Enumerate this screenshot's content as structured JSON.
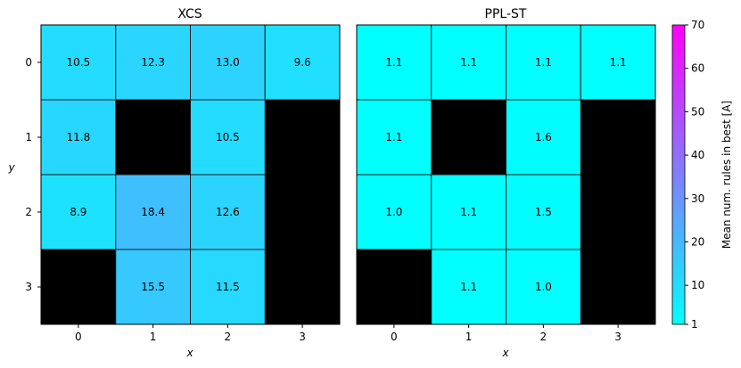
{
  "chart_data": [
    {
      "type": "heatmap",
      "title": "XCS",
      "xlabel": "x",
      "ylabel": "y",
      "x_categories": [
        "0",
        "1",
        "2",
        "3"
      ],
      "y_categories": [
        "0",
        "1",
        "2",
        "3"
      ],
      "values": [
        [
          10.5,
          12.3,
          13.0,
          9.6
        ],
        [
          11.8,
          null,
          10.5,
          null
        ],
        [
          8.9,
          18.4,
          12.6,
          null
        ],
        [
          null,
          15.5,
          11.5,
          null
        ]
      ],
      "labels": [
        [
          "10.5",
          "12.3",
          "13.0",
          "9.6"
        ],
        [
          "11.8",
          "",
          "10.5",
          ""
        ],
        [
          "8.9",
          "18.4",
          "12.6",
          ""
        ],
        [
          "",
          "15.5",
          "11.5",
          ""
        ]
      ],
      "null_color": "#000000"
    },
    {
      "type": "heatmap",
      "title": "PPL-ST",
      "xlabel": "x",
      "ylabel": "",
      "x_categories": [
        "0",
        "1",
        "2",
        "3"
      ],
      "y_categories": [],
      "values": [
        [
          1.1,
          1.1,
          1.1,
          1.1
        ],
        [
          1.1,
          null,
          1.6,
          null
        ],
        [
          1.0,
          1.1,
          1.5,
          null
        ],
        [
          null,
          1.1,
          1.0,
          null
        ]
      ],
      "labels": [
        [
          "1.1",
          "1.1",
          "1.1",
          "1.1"
        ],
        [
          "1.1",
          "",
          "1.6",
          ""
        ],
        [
          "1.0",
          "1.1",
          "1.5",
          ""
        ],
        [
          "",
          "1.1",
          "1.0",
          ""
        ]
      ],
      "null_color": "#000000"
    }
  ],
  "colorbar": {
    "label": "Mean num. rules in best [A]",
    "min": 1,
    "max": 70,
    "ticks": [
      1,
      10,
      20,
      30,
      40,
      50,
      60,
      70
    ],
    "tick_labels": [
      "1",
      "10",
      "20",
      "30",
      "40",
      "50",
      "60",
      "70"
    ],
    "colormap": "cool",
    "color_low": "#00ffff",
    "color_high": "#ff00ff"
  }
}
